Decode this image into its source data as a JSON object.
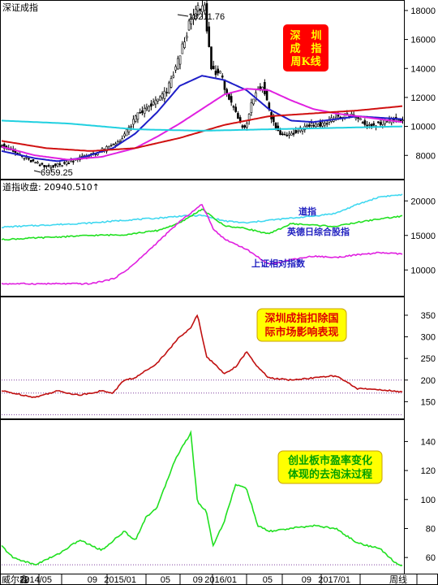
{
  "chart_data": [
    {
      "type": "line",
      "panel_label": "深证成指",
      "annotation_box": {
        "lines": [
          "深　圳",
          "成　指",
          "周K线"
        ],
        "bg": "#ff0000",
        "fg": "#ffff00"
      },
      "max_label": "18211.76",
      "min_label": "6959.25",
      "y_ticks": [
        "18000",
        "16000",
        "14000",
        "12000",
        "10000",
        "8000"
      ],
      "ylim": [
        6500,
        18500
      ],
      "x_index_max": 180,
      "series": [
        {
          "type": "candles",
          "color": "#000000",
          "x": [
            0,
            10,
            20,
            28,
            35,
            42,
            50,
            55,
            62,
            70,
            75,
            80,
            85,
            88,
            92,
            95,
            99,
            104,
            108,
            110,
            113,
            115,
            118,
            122,
            126,
            132,
            138,
            146,
            150,
            158,
            166,
            172,
            178
          ],
          "values": [
            8800,
            7900,
            7200,
            7400,
            7800,
            8100,
            8600,
            9200,
            10800,
            11700,
            12400,
            14500,
            17000,
            18000,
            18211,
            14000,
            13600,
            11500,
            10200,
            9800,
            11500,
            12400,
            12900,
            10500,
            9400,
            9600,
            10100,
            10200,
            10600,
            10800,
            10000,
            10300,
            10500
          ]
        },
        {
          "name": "MA-blue",
          "color": "#1e1ec8",
          "x": [
            0,
            15,
            25,
            35,
            50,
            60,
            70,
            80,
            90,
            100,
            110,
            120,
            130,
            140,
            150,
            160,
            170,
            180
          ],
          "values": [
            8300,
            7800,
            7600,
            7800,
            8500,
            9500,
            11000,
            12800,
            13500,
            13200,
            12500,
            11200,
            10400,
            10300,
            10500,
            10700,
            10600,
            10500
          ]
        },
        {
          "name": "MA-magenta",
          "color": "#e020e0",
          "x": [
            0,
            15,
            30,
            45,
            60,
            70,
            80,
            90,
            100,
            110,
            120,
            130,
            140,
            150,
            160,
            170,
            180
          ],
          "values": [
            8600,
            8000,
            7700,
            7900,
            8500,
            9300,
            10200,
            11200,
            12200,
            12600,
            12500,
            11800,
            11200,
            10900,
            10700,
            10500,
            10300
          ]
        },
        {
          "name": "MA-red",
          "color": "#d01010",
          "x": [
            0,
            20,
            40,
            60,
            80,
            100,
            120,
            140,
            160,
            180
          ],
          "values": [
            9000,
            8500,
            8300,
            8500,
            9200,
            10100,
            10700,
            10900,
            11100,
            11400
          ]
        },
        {
          "name": "MA-cyan",
          "color": "#20d0e0",
          "x": [
            0,
            30,
            60,
            90,
            120,
            150,
            180
          ],
          "values": [
            10400,
            10200,
            9800,
            9700,
            9800,
            9900,
            10000
          ]
        }
      ]
    },
    {
      "type": "line",
      "panel_label": "道指收盘: 20940.510↑",
      "y_ticks": [
        "20000",
        "15000",
        "10000"
      ],
      "ylim": [
        6500,
        22500
      ],
      "x_index_max": 180,
      "series": [
        {
          "name": "道指",
          "color": "#40d8f0",
          "label_color": "#2020c0",
          "x": [
            0,
            20,
            40,
            55,
            70,
            80,
            90,
            100,
            110,
            120,
            130,
            140,
            150,
            160,
            170,
            180
          ],
          "values": [
            16200,
            16500,
            16800,
            17200,
            17500,
            17800,
            17900,
            17100,
            16800,
            17200,
            17500,
            17800,
            18200,
            19500,
            20600,
            20900
          ]
        },
        {
          "name": "英德日综合股指",
          "color": "#20e020",
          "label_color": "#2020c0",
          "x": [
            0,
            20,
            40,
            55,
            70,
            80,
            90,
            100,
            110,
            120,
            130,
            140,
            150,
            160,
            170,
            180
          ],
          "values": [
            14400,
            14700,
            15000,
            15100,
            15700,
            16800,
            18800,
            16400,
            16000,
            15200,
            16700,
            16500,
            16300,
            16900,
            17400,
            17800
          ]
        },
        {
          "name": "上证相对指数",
          "color": "#e020e0",
          "label_color": "#2020c0",
          "x": [
            0,
            20,
            40,
            50,
            55,
            60,
            70,
            80,
            90,
            95,
            100,
            110,
            120,
            130,
            140,
            150,
            160,
            170,
            180
          ],
          "values": [
            8000,
            8000,
            8000,
            8700,
            9700,
            11000,
            14000,
            17000,
            19500,
            16000,
            14500,
            13000,
            10800,
            11500,
            12000,
            11800,
            12200,
            12500,
            12300
          ]
        }
      ]
    },
    {
      "type": "line",
      "annotation_box": {
        "lines": [
          "深圳成指扣除国",
          "际市场影响表现"
        ],
        "bg": "#ffff00",
        "fg": "#e00000"
      },
      "y_ticks": [
        "350",
        "300",
        "250",
        "200",
        "150"
      ],
      "ylim": [
        115,
        380
      ],
      "x_index_max": 180,
      "reference_lines": [
        200,
        170,
        120
      ],
      "series": [
        {
          "color": "#c01010",
          "x": [
            0,
            15,
            25,
            35,
            45,
            50,
            55,
            60,
            70,
            80,
            85,
            88,
            92,
            95,
            100,
            105,
            110,
            115,
            120,
            130,
            140,
            150,
            160,
            170,
            180
          ],
          "values": [
            175,
            160,
            175,
            165,
            175,
            170,
            200,
            205,
            240,
            300,
            320,
            352,
            255,
            240,
            215,
            230,
            265,
            230,
            205,
            200,
            205,
            210,
            180,
            178,
            172
          ]
        }
      ]
    },
    {
      "type": "line",
      "annotation_box": {
        "lines": [
          "创业板市盈率变化",
          "体现的去泡沫过程"
        ],
        "bg": "#ffff00",
        "fg": "#00a000"
      },
      "y_ticks": [
        "140",
        "120",
        "100",
        "80",
        "60"
      ],
      "ylim": [
        50,
        152
      ],
      "x_index_max": 180,
      "reference_lines": [
        55
      ],
      "series": [
        {
          "color": "#20e020",
          "x": [
            0,
            5,
            15,
            25,
            35,
            45,
            55,
            60,
            65,
            70,
            78,
            85,
            88,
            92,
            95,
            100,
            105,
            110,
            115,
            120,
            130,
            140,
            150,
            160,
            170,
            178
          ],
          "values": [
            68,
            60,
            55,
            62,
            72,
            65,
            78,
            72,
            88,
            95,
            128,
            146,
            98,
            92,
            68,
            85,
            110,
            108,
            82,
            78,
            80,
            82,
            80,
            70,
            66,
            55
          ]
        }
      ]
    }
  ],
  "x_axis": {
    "left_label": "威尔鑫",
    "ticks": [
      {
        "label": "2",
        "x": 24
      },
      {
        "label": "2014/05",
        "x": 38
      },
      {
        "label": "09",
        "x": 66
      },
      {
        "label": "2015/01",
        "x": 90
      },
      {
        "label": "05",
        "x": 111
      },
      {
        "label": "09",
        "x": 131
      },
      {
        "label": "2016/01",
        "x": 152
      },
      {
        "label": "05",
        "x": 174
      },
      {
        "label": "09",
        "x": 198
      },
      {
        "label": "2017/01",
        "x": 222
      },
      {
        "label": "周线",
        "x": 257
      }
    ]
  }
}
